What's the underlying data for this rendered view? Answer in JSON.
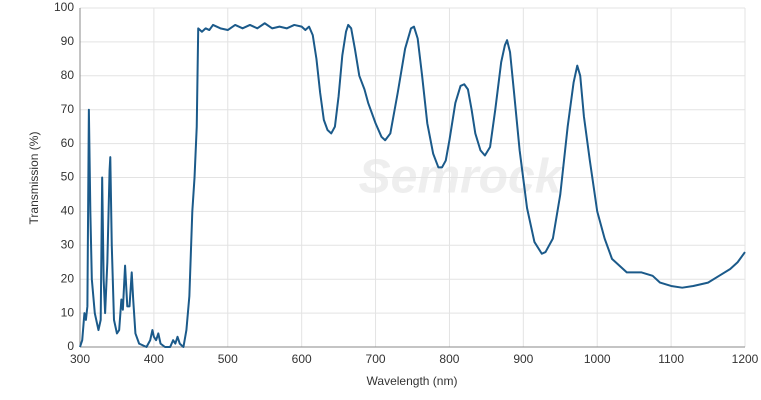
{
  "chart_data": {
    "type": "line",
    "xlabel": "Wavelength (nm)",
    "ylabel": "Transmission (%)",
    "watermark": "Semrock",
    "color": "#1b5a8a",
    "grid": true,
    "xlim": [
      300,
      1200
    ],
    "xticks": [
      300,
      400,
      500,
      600,
      700,
      800,
      900,
      1000,
      1100,
      1200
    ],
    "ylim": [
      0,
      100
    ],
    "yticks": [
      0,
      10,
      20,
      30,
      40,
      50,
      60,
      70,
      80,
      90,
      100
    ],
    "x": [
      300,
      303,
      306,
      308,
      310,
      312,
      314,
      316,
      320,
      325,
      328,
      330,
      332,
      334,
      337,
      340,
      341,
      343,
      346,
      350,
      353,
      356,
      358,
      361,
      364,
      367,
      370,
      372,
      375,
      380,
      390,
      395,
      398,
      400,
      403,
      406,
      409,
      415,
      422,
      426,
      429,
      432,
      435,
      440,
      444,
      448,
      452,
      455,
      458,
      460,
      465,
      470,
      475,
      480,
      490,
      500,
      510,
      520,
      530,
      540,
      550,
      560,
      570,
      580,
      590,
      600,
      605,
      610,
      615,
      620,
      625,
      630,
      635,
      640,
      645,
      650,
      655,
      660,
      663,
      667,
      672,
      678,
      685,
      690,
      700,
      708,
      713,
      720,
      730,
      740,
      748,
      752,
      757,
      763,
      770,
      778,
      785,
      790,
      795,
      800,
      808,
      815,
      820,
      825,
      830,
      835,
      842,
      848,
      855,
      862,
      870,
      875,
      878,
      882,
      887,
      895,
      905,
      915,
      925,
      930,
      940,
      950,
      960,
      968,
      973,
      977,
      982,
      990,
      1000,
      1010,
      1020,
      1030,
      1040,
      1050,
      1060,
      1075,
      1085,
      1100,
      1115,
      1130,
      1150,
      1165,
      1180,
      1190,
      1200
    ],
    "values": [
      0,
      2,
      10,
      8,
      12,
      70,
      40,
      20,
      10,
      5,
      8,
      50,
      20,
      10,
      25,
      52,
      56,
      30,
      8,
      4,
      5,
      14,
      11,
      24,
      12,
      12,
      22,
      14,
      4,
      1,
      0,
      2,
      5,
      3,
      2,
      4,
      1,
      0,
      0,
      2,
      1,
      3,
      1,
      0,
      5,
      15,
      40,
      50,
      65,
      94,
      93,
      94,
      93.5,
      95,
      94,
      93.5,
      95,
      94,
      95,
      94,
      95.5,
      94,
      94.5,
      94,
      95,
      94.5,
      93.5,
      94.5,
      92,
      85,
      75,
      67,
      64,
      63,
      65,
      74,
      86,
      93,
      95,
      94,
      88,
      80,
      76,
      72,
      66,
      62,
      61,
      63,
      75,
      88,
      94,
      94.5,
      91,
      80,
      66,
      57,
      53,
      53,
      55,
      61,
      72,
      77,
      77.5,
      76,
      70,
      63,
      58,
      56.5,
      59,
      70,
      84,
      89,
      90.5,
      87,
      76,
      58,
      41,
      31,
      27.5,
      28,
      32,
      45,
      65,
      78,
      83,
      80,
      68,
      55,
      40,
      32,
      26,
      24,
      22,
      22,
      22,
      21,
      19,
      18,
      17.5,
      18,
      19,
      21,
      23,
      25,
      28
    ]
  }
}
